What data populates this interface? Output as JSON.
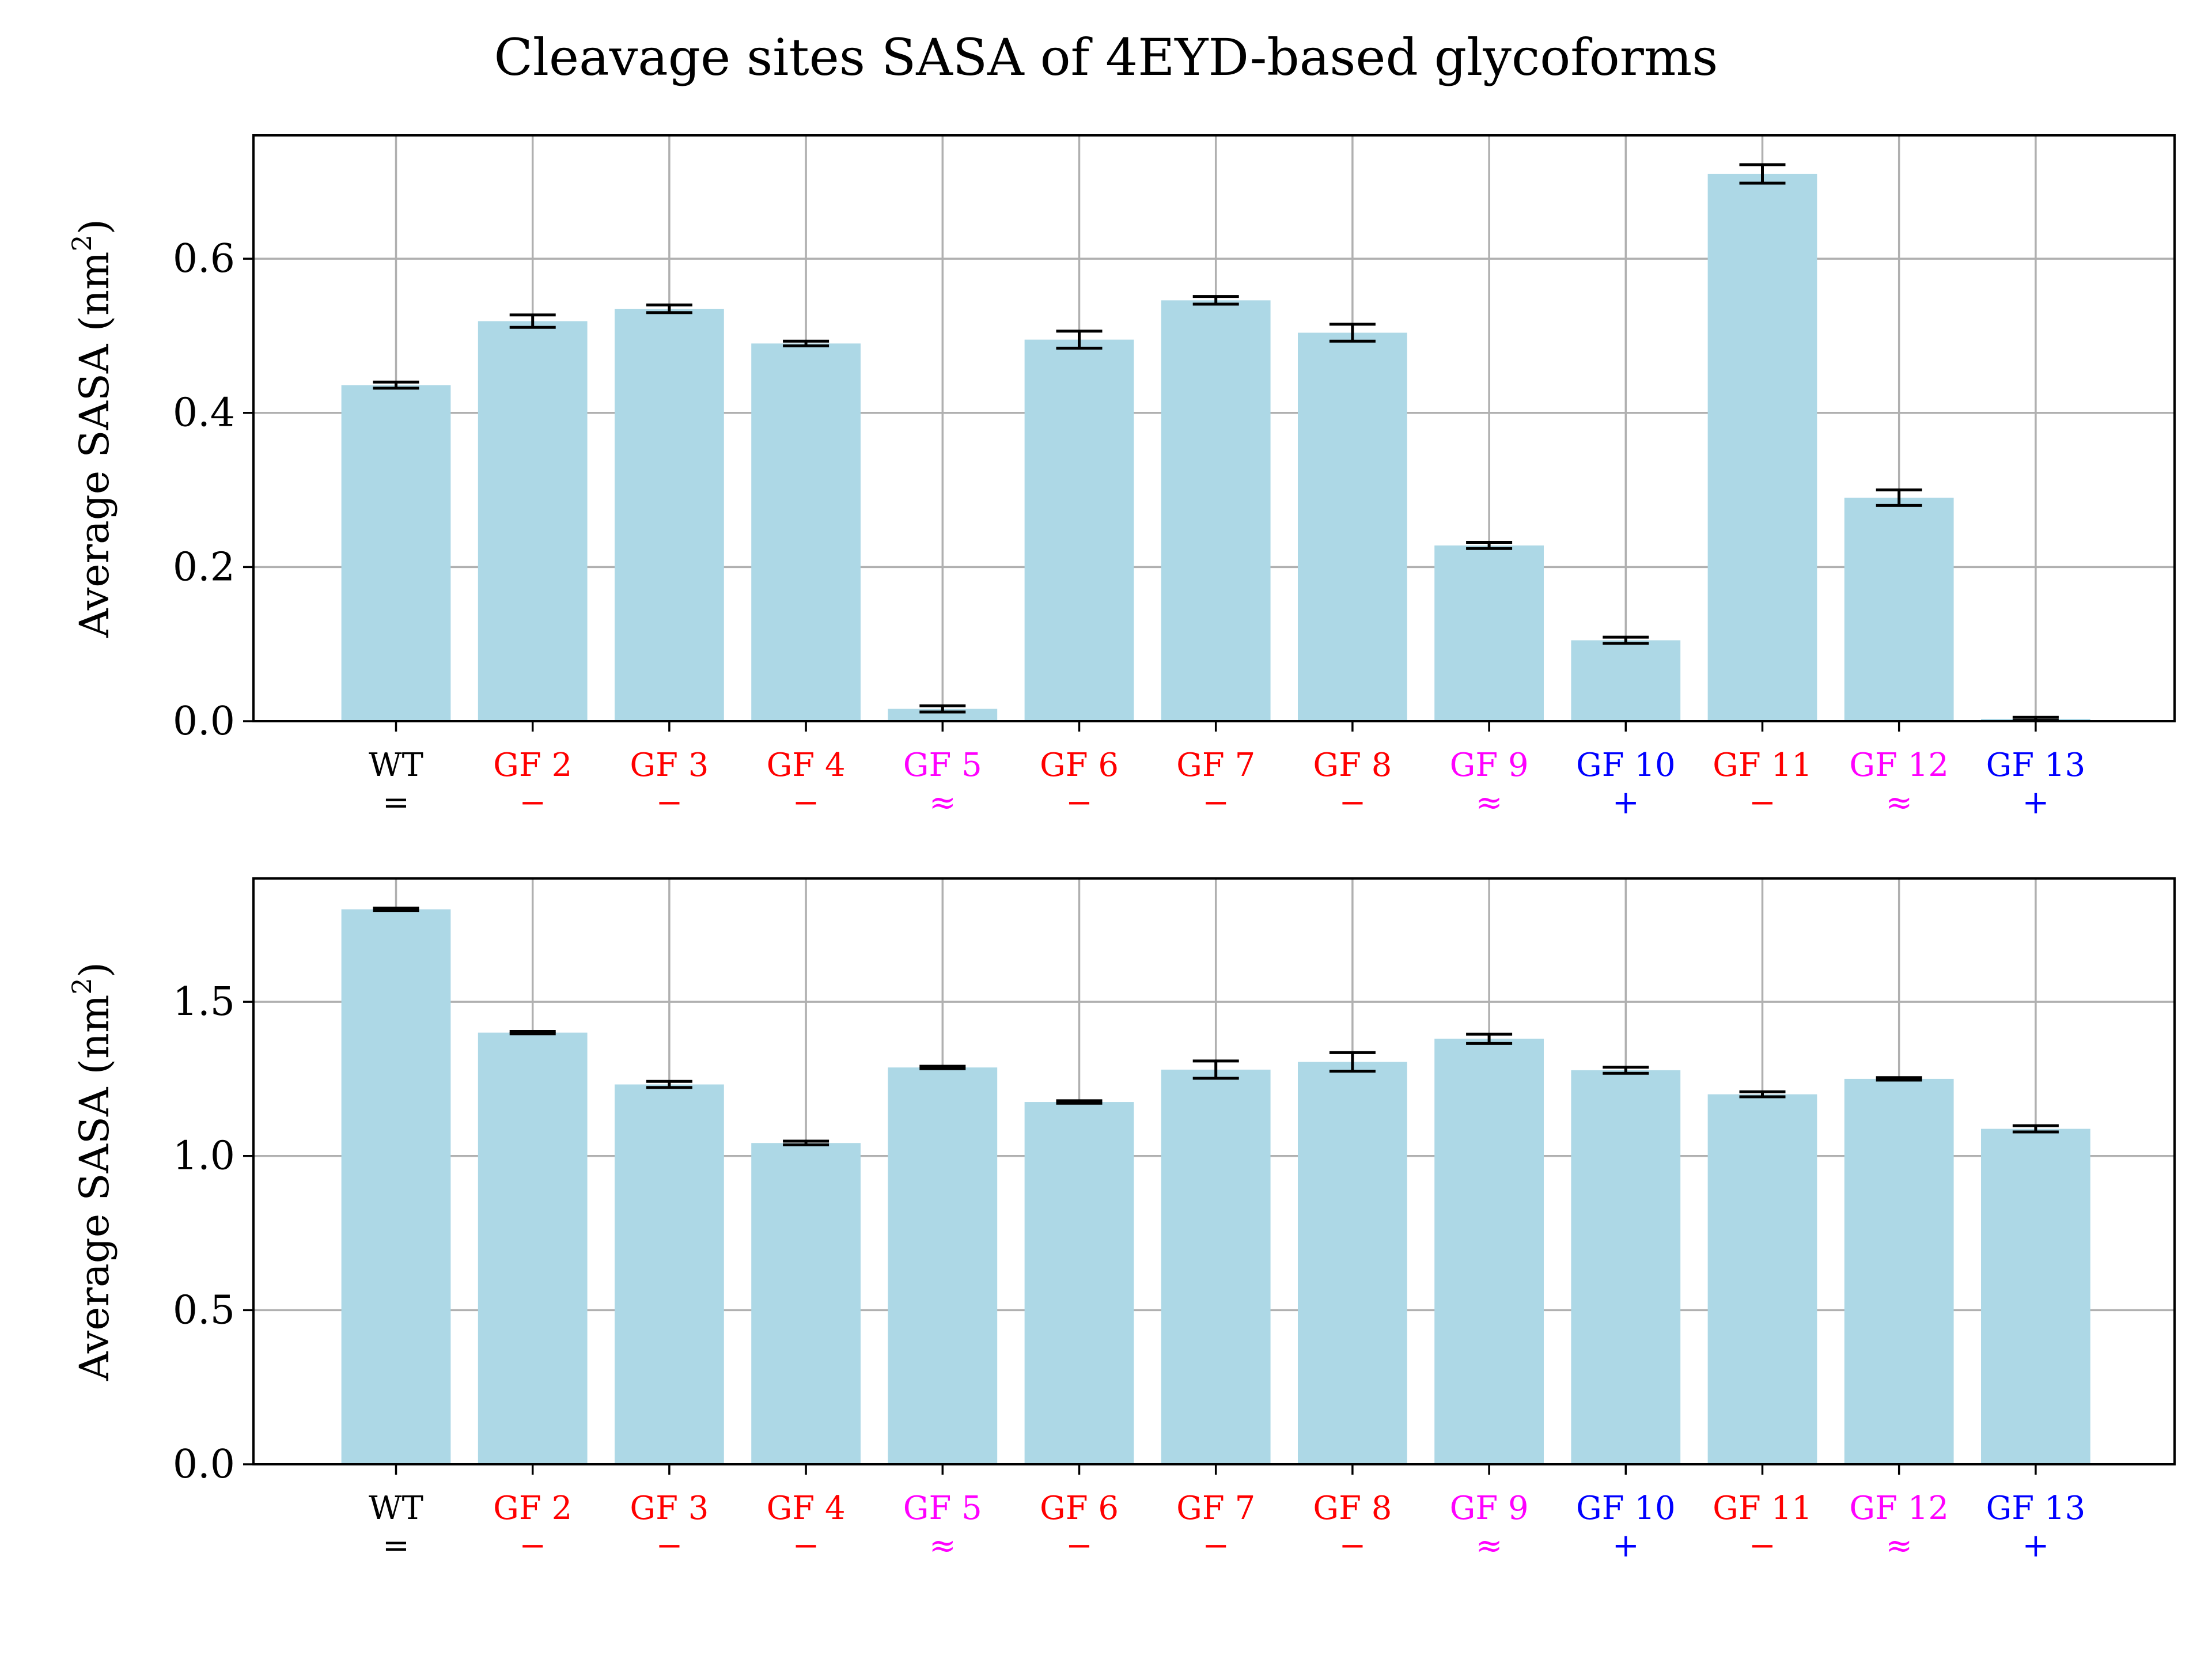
{
  "title": "Cleavage sites SASA of 4EYD-based glycoforms",
  "colors": {
    "bar": "#add8e6",
    "grid": "#b0b0b0",
    "error": "#000000",
    "equal": "#000000",
    "minus": "#ff0000",
    "approx": "#ff00ff",
    "plus": "#0000ff"
  },
  "chart_data": [
    {
      "type": "bar",
      "title": "",
      "xlabel": "",
      "ylabel": "Average SASA (nm",
      "ylabel_sup": "2",
      "ylabel_close": ")",
      "ylim": [
        0,
        0.76
      ],
      "yticks": [
        0.0,
        0.2,
        0.4,
        0.6
      ],
      "ytick_labels": [
        "0.0",
        "0.2",
        "0.4",
        "0.6"
      ],
      "grid": true,
      "categories": [
        "WT",
        "GF 2",
        "GF 3",
        "GF 4",
        "GF 5",
        "GF 6",
        "GF 7",
        "GF 8",
        "GF 9",
        "GF 10",
        "GF 11",
        "GF 12",
        "GF 13"
      ],
      "symbols": [
        "=",
        "−",
        "−",
        "−",
        "≈",
        "−",
        "−",
        "−",
        "≈",
        "+",
        "−",
        "≈",
        "+"
      ],
      "symbol_types": [
        "equal",
        "minus",
        "minus",
        "minus",
        "approx",
        "minus",
        "minus",
        "minus",
        "approx",
        "plus",
        "minus",
        "approx",
        "plus"
      ],
      "values": [
        0.436,
        0.519,
        0.535,
        0.49,
        0.016,
        0.495,
        0.546,
        0.504,
        0.228,
        0.105,
        0.71,
        0.29,
        0.003
      ],
      "errors": [
        0.004,
        0.008,
        0.005,
        0.003,
        0.004,
        0.011,
        0.005,
        0.011,
        0.004,
        0.004,
        0.012,
        0.01,
        0.002
      ]
    },
    {
      "type": "bar",
      "title": "",
      "xlabel": "",
      "ylabel": "Average SASA (nm",
      "ylabel_sup": "2",
      "ylabel_close": ")",
      "ylim": [
        0,
        1.9
      ],
      "yticks": [
        0.0,
        0.5,
        1.0,
        1.5
      ],
      "ytick_labels": [
        "0.0",
        "0.5",
        "1.0",
        "1.5"
      ],
      "grid": true,
      "categories": [
        "WT",
        "GF 2",
        "GF 3",
        "GF 4",
        "GF 5",
        "GF 6",
        "GF 7",
        "GF 8",
        "GF 9",
        "GF 10",
        "GF 11",
        "GF 12",
        "GF 13"
      ],
      "symbols": [
        "=",
        "−",
        "−",
        "−",
        "≈",
        "−",
        "−",
        "−",
        "≈",
        "+",
        "−",
        "≈",
        "+"
      ],
      "symbol_types": [
        "equal",
        "minus",
        "minus",
        "minus",
        "approx",
        "minus",
        "minus",
        "minus",
        "approx",
        "plus",
        "minus",
        "approx",
        "plus"
      ],
      "values": [
        1.8,
        1.4,
        1.232,
        1.042,
        1.287,
        1.175,
        1.28,
        1.305,
        1.38,
        1.278,
        1.2,
        1.25,
        1.088
      ],
      "errors": [
        0.004,
        0.004,
        0.01,
        0.006,
        0.004,
        0.004,
        0.028,
        0.03,
        0.015,
        0.01,
        0.008,
        0.004,
        0.01
      ]
    }
  ]
}
